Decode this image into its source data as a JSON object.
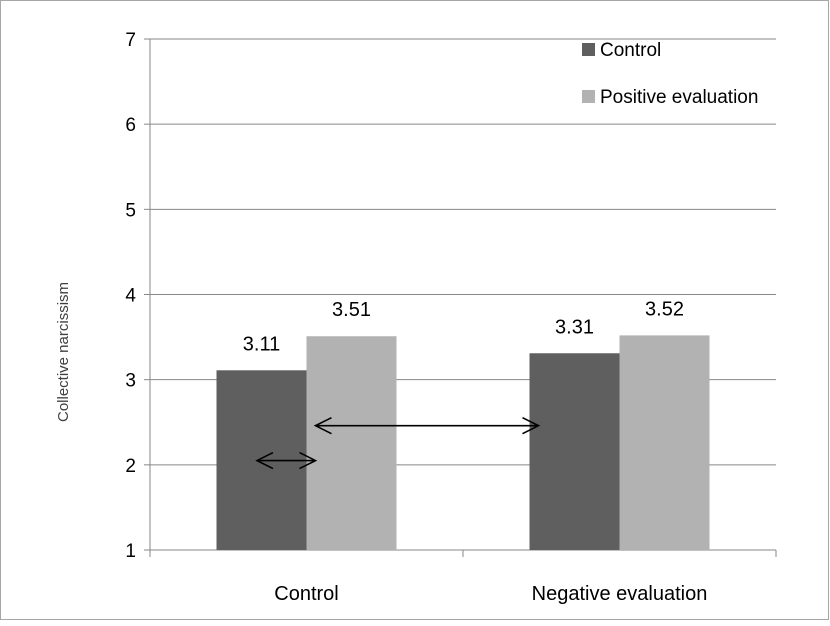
{
  "chart_data": {
    "type": "bar",
    "title": "",
    "xlabel": "",
    "ylabel": "Collective narcissism",
    "categories": [
      "Control",
      "Negative evaluation"
    ],
    "series": [
      {
        "name": "Control",
        "values": [
          3.11,
          3.31
        ],
        "labels": [
          "3.11",
          "3.31"
        ],
        "color": "#5f5f5f"
      },
      {
        "name": "Positive evaluation",
        "values": [
          3.51,
          3.52
        ],
        "labels": [
          "3.51",
          "3.52"
        ],
        "color": "#b2b2b2"
      }
    ],
    "ylim": [
      1,
      7
    ],
    "yticks": [
      1,
      2,
      3,
      4,
      5,
      6,
      7
    ],
    "grid": true,
    "legend_position": "top-right",
    "annotations": [
      {
        "type": "double-arrow",
        "from": {
          "category": "Control",
          "y": 2.05,
          "offset": -0.55
        },
        "to": {
          "category": "Control",
          "y": 2.05,
          "offset": 0.1
        }
      },
      {
        "type": "double-arrow",
        "from": {
          "category": "Control",
          "y": 2.46,
          "offset": 0.1
        },
        "to": {
          "category": "Negative evaluation",
          "y": 2.46,
          "offset": -0.9
        }
      }
    ]
  }
}
